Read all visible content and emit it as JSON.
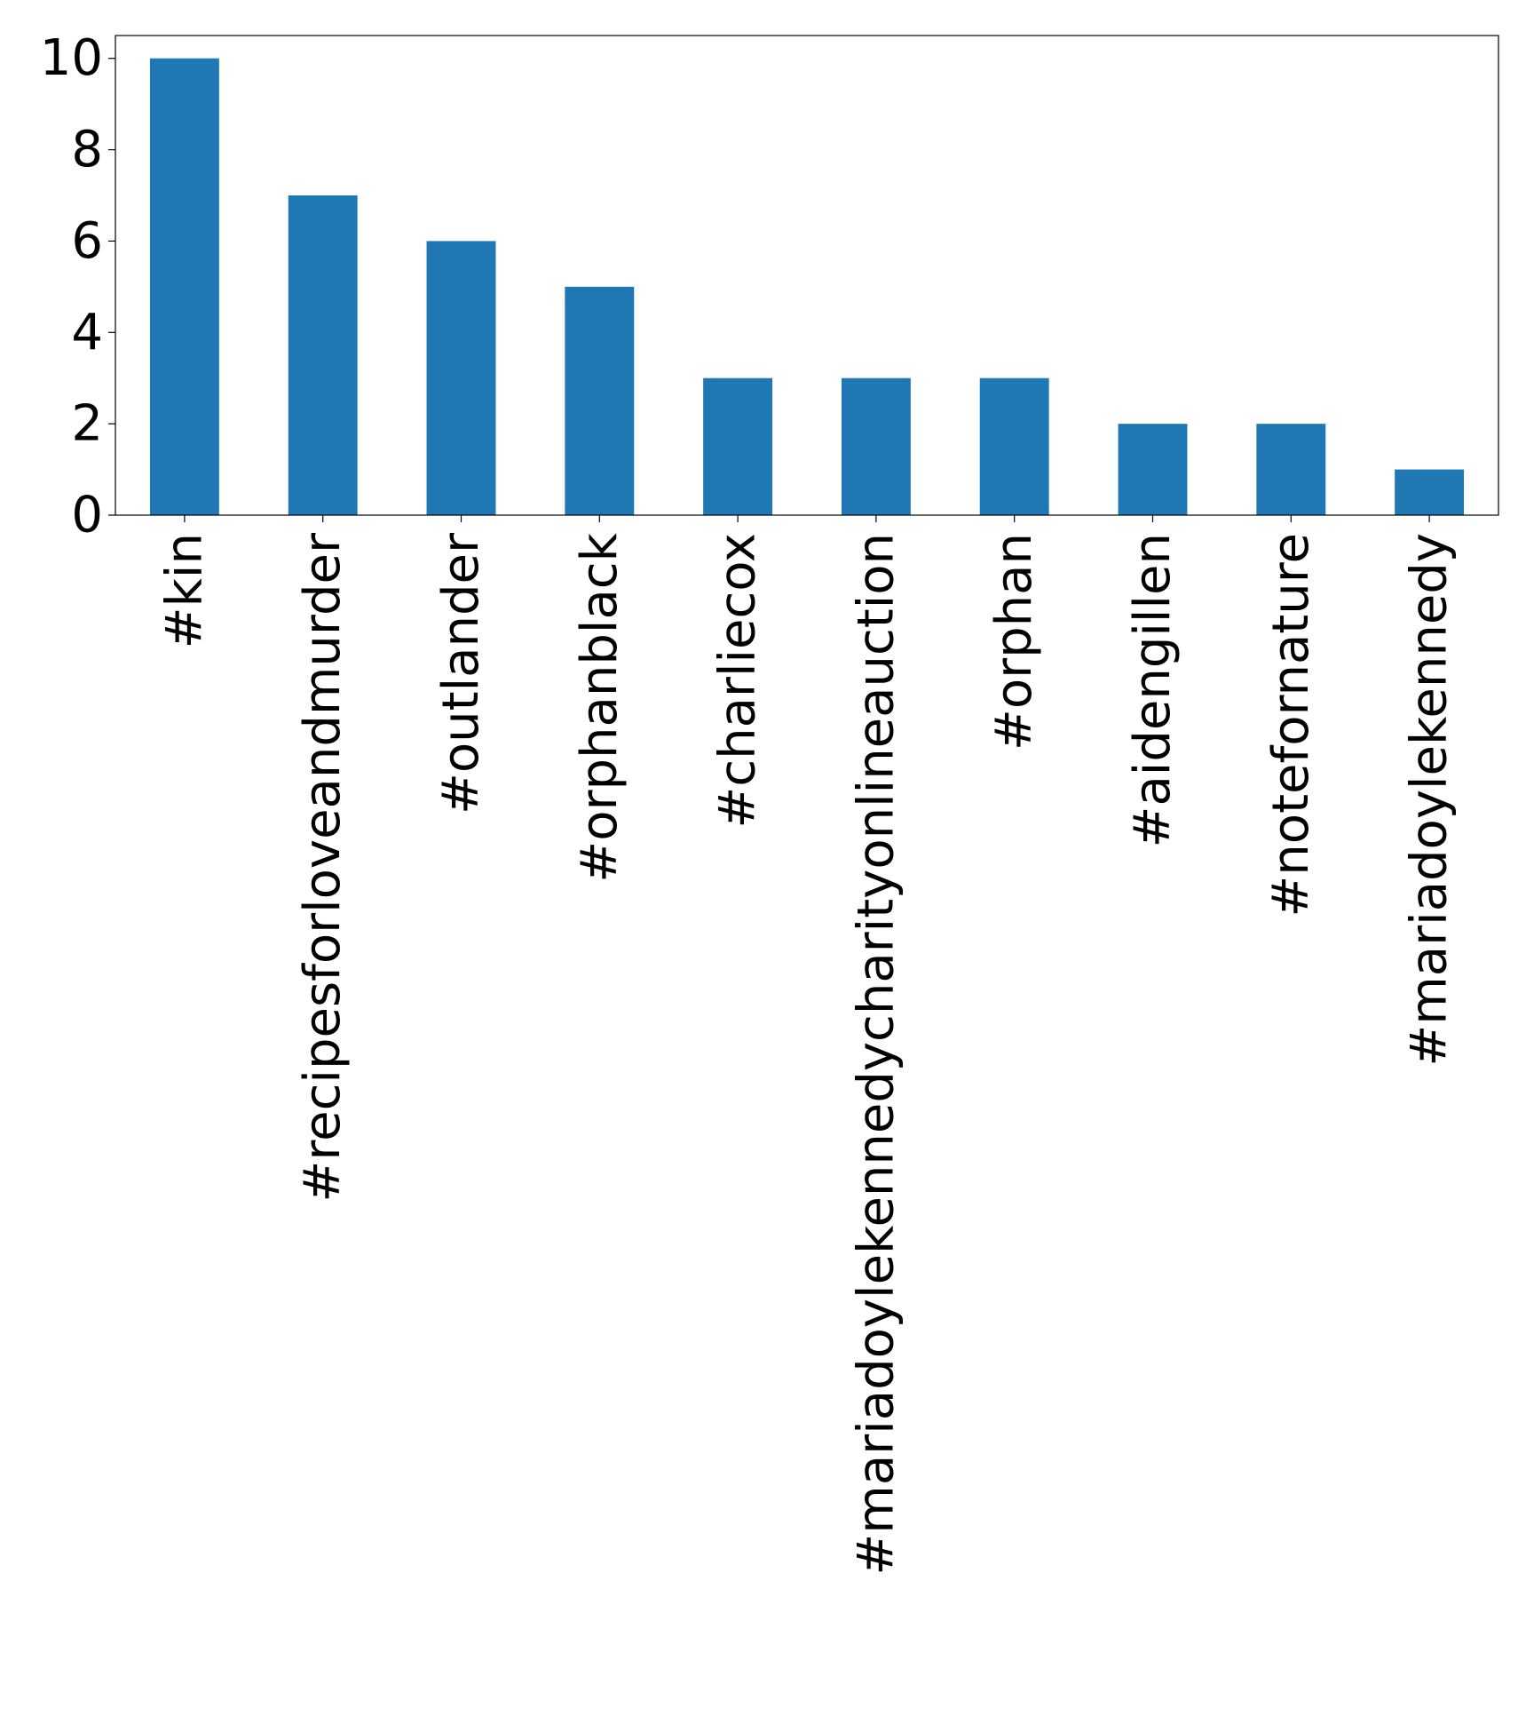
{
  "chart_data": {
    "type": "bar",
    "title": "",
    "xlabel": "",
    "ylabel": "",
    "categories": [
      "#kin",
      "#recipesforloveandmurder",
      "#outlander",
      "#orphanblack",
      "#charliecox",
      "#mariadoylekennedycharityonlineauction",
      "#orphan",
      "#aidengillen",
      "#notefornature",
      "#mariadoylekennedy"
    ],
    "values": [
      10,
      7,
      6,
      5,
      3,
      3,
      3,
      2,
      2,
      1
    ],
    "ylim": [
      0,
      10.5
    ],
    "yticks": [
      0,
      2,
      4,
      6,
      8,
      10
    ],
    "bar_color": "#1f77b4",
    "grid": false,
    "legend": "none"
  }
}
